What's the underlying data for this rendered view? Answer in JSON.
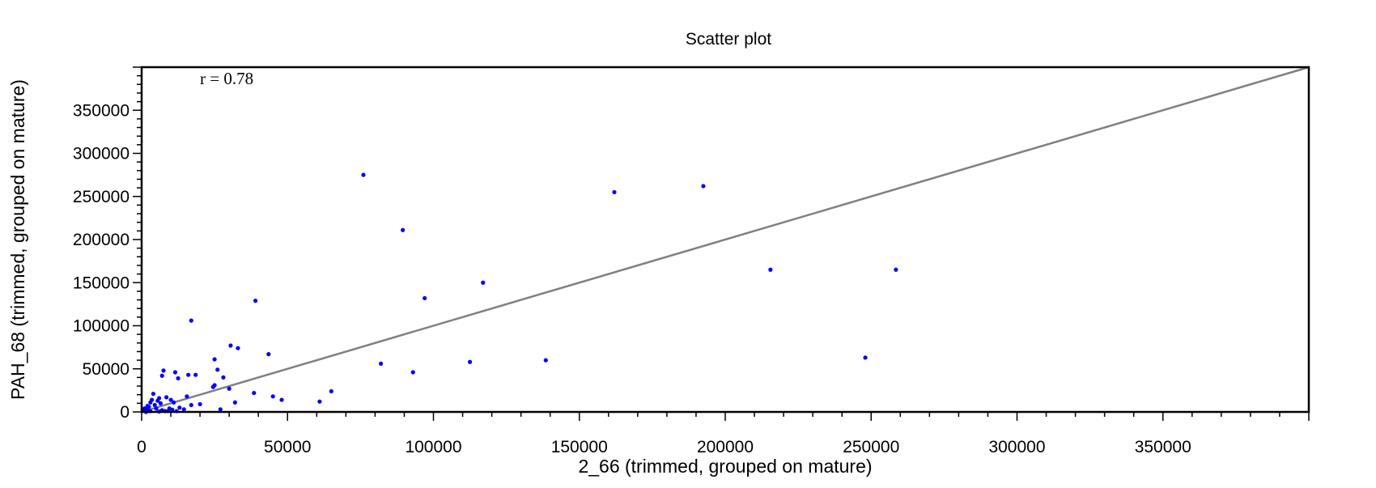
{
  "chart_data": {
    "type": "scatter",
    "title": "Scatter plot",
    "xlabel": "2_66 (trimmed, grouped on mature)",
    "ylabel": "PAH_68 (trimmed, grouped on mature)",
    "annotation": "r = 0.78",
    "xlim": [
      0,
      400000
    ],
    "ylim": [
      0,
      400000
    ],
    "x_ticks": [
      0,
      50000,
      100000,
      150000,
      200000,
      250000,
      300000,
      350000
    ],
    "y_ticks": [
      0,
      50000,
      100000,
      150000,
      200000,
      250000,
      300000,
      350000
    ],
    "x_tick_labels": [
      "0",
      "50000",
      "100000",
      "150000",
      "200000",
      "250000",
      "300000",
      "350000"
    ],
    "y_tick_labels": [
      "0",
      "50000",
      "100000",
      "150000",
      "200000",
      "250000",
      "300000",
      "350000"
    ],
    "grid": false,
    "colors": {
      "points": "#0000ff",
      "line": "#808080",
      "axes": "#000000"
    },
    "reference_line": {
      "from": [
        0,
        0
      ],
      "to": [
        400000,
        400000
      ]
    },
    "series": [
      {
        "points": [
          [
            76000,
            275000
          ],
          [
            89500,
            211000
          ],
          [
            162000,
            255000
          ],
          [
            192500,
            262000
          ],
          [
            215500,
            165000
          ],
          [
            258500,
            165000
          ],
          [
            248000,
            63000
          ],
          [
            117000,
            150000
          ],
          [
            97000,
            132000
          ],
          [
            138500,
            60000
          ],
          [
            112500,
            58000
          ],
          [
            82000,
            56000
          ],
          [
            93000,
            46000
          ],
          [
            65000,
            24000
          ],
          [
            61000,
            12000
          ],
          [
            48000,
            14000
          ],
          [
            45000,
            18000
          ],
          [
            43500,
            67000
          ],
          [
            39000,
            129000
          ],
          [
            38500,
            22000
          ],
          [
            33000,
            74000
          ],
          [
            32000,
            11000
          ],
          [
            30500,
            77000
          ],
          [
            30000,
            27000
          ],
          [
            28000,
            40000
          ],
          [
            27000,
            3000
          ],
          [
            26000,
            49000
          ],
          [
            25000,
            31000
          ],
          [
            24500,
            29000
          ],
          [
            25000,
            61000
          ],
          [
            20000,
            9000
          ],
          [
            18500,
            43000
          ],
          [
            17000,
            106000
          ],
          [
            17000,
            8000
          ],
          [
            16000,
            43000
          ],
          [
            15500,
            18000
          ],
          [
            14500,
            3000
          ],
          [
            13000,
            5000
          ],
          [
            12500,
            39000
          ],
          [
            11500,
            46000
          ],
          [
            11000,
            11000
          ],
          [
            10000,
            14000
          ],
          [
            9500,
            4000
          ],
          [
            8500,
            17000
          ],
          [
            8000,
            1000
          ],
          [
            7500,
            48000
          ],
          [
            7000,
            42000
          ],
          [
            6500,
            10000
          ],
          [
            6000,
            16000
          ],
          [
            5000,
            4000
          ],
          [
            4500,
            8000
          ],
          [
            4000,
            21000
          ],
          [
            3500,
            14000
          ],
          [
            3000,
            1000
          ],
          [
            2500,
            6000
          ],
          [
            2000,
            3000
          ],
          [
            1500,
            0
          ],
          [
            1000,
            1000
          ],
          [
            500,
            2000
          ],
          [
            3000,
            11000
          ],
          [
            5500,
            13000
          ],
          [
            7000,
            2000
          ],
          [
            9000,
            1000
          ],
          [
            12000,
            1000
          ],
          [
            6000,
            500
          ],
          [
            2000,
            7000
          ],
          [
            1000,
            4000
          ],
          [
            10500,
            2500
          ]
        ]
      }
    ]
  }
}
